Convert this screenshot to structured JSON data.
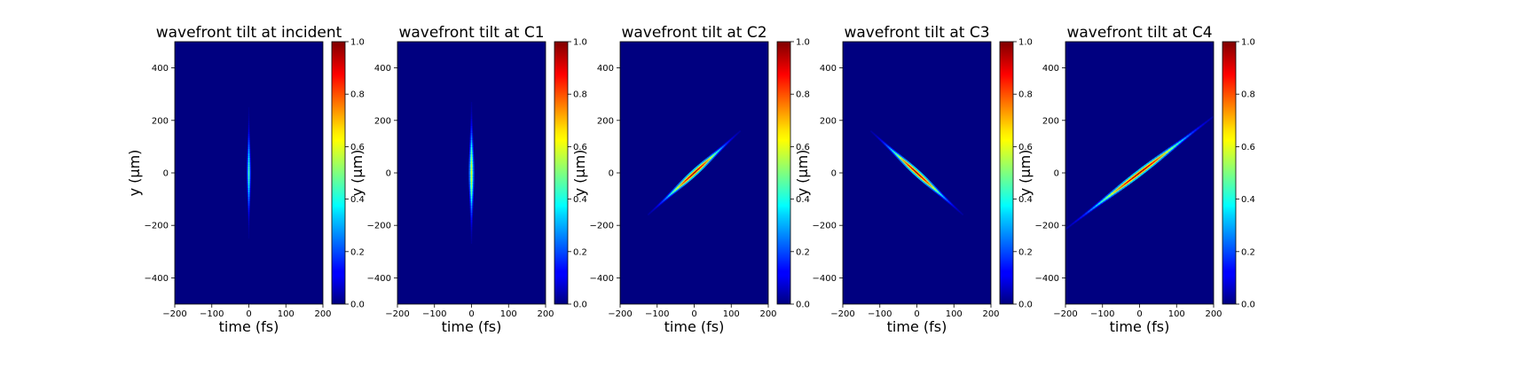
{
  "chart_data": [
    {
      "type": "heatmap",
      "title": "wavefront tilt at incident",
      "xlabel": "time (fs)",
      "ylabel": "y (μm)",
      "xlim": [
        -200,
        200
      ],
      "ylim": [
        -500,
        500
      ],
      "xticks": [
        -200,
        -100,
        0,
        100,
        200
      ],
      "yticks": [
        -400,
        -200,
        0,
        200,
        400
      ],
      "colorbar": {
        "cmap": "jet",
        "range": [
          0.0,
          1.0
        ],
        "ticks": [
          "0.0",
          "0.2",
          "0.4",
          "0.6",
          "0.8",
          "1.0"
        ]
      },
      "feature": {
        "t0": 0,
        "slope_fs_per_um": 0,
        "y_half_extent": 250,
        "t_width_fs": 3,
        "peak": 0.45
      }
    },
    {
      "type": "heatmap",
      "title": "wavefront tilt at C1",
      "xlabel": "time (fs)",
      "ylabel": "y (μm)",
      "xlim": [
        -200,
        200
      ],
      "ylim": [
        -500,
        500
      ],
      "xticks": [
        -200,
        -100,
        0,
        100,
        200
      ],
      "yticks": [
        -400,
        -200,
        0,
        200,
        400
      ],
      "colorbar": {
        "cmap": "jet",
        "range": [
          0.0,
          1.0
        ],
        "ticks": [
          "0.0",
          "0.2",
          "0.4",
          "0.6",
          "0.8",
          "1.0"
        ]
      },
      "feature": {
        "t0": 0,
        "slope_fs_per_um": 0,
        "y_half_extent": 270,
        "t_width_fs": 4,
        "peak": 0.6
      }
    },
    {
      "type": "heatmap",
      "title": "wavefront tilt at C2",
      "xlabel": "time (fs)",
      "ylabel": "y (μm)",
      "xlim": [
        -200,
        200
      ],
      "ylim": [
        -500,
        500
      ],
      "xticks": [
        -200,
        -100,
        0,
        100,
        200
      ],
      "yticks": [
        -400,
        -200,
        0,
        200,
        400
      ],
      "colorbar": {
        "cmap": "jet",
        "range": [
          0.0,
          1.0
        ],
        "ticks": [
          "0.0",
          "0.2",
          "0.4",
          "0.6",
          "0.8",
          "1.0"
        ]
      },
      "feature": {
        "t0": 0,
        "slope_fs_per_um": 0.78,
        "y_half_extent": 160,
        "t_width_fs": 5,
        "peak": 0.95
      }
    },
    {
      "type": "heatmap",
      "title": "wavefront tilt at C3",
      "xlabel": "time (fs)",
      "ylabel": "y (μm)",
      "xlim": [
        -200,
        200
      ],
      "ylim": [
        -500,
        500
      ],
      "xticks": [
        -200,
        -100,
        0,
        100,
        200
      ],
      "yticks": [
        -400,
        -200,
        0,
        200,
        400
      ],
      "colorbar": {
        "cmap": "jet",
        "range": [
          0.0,
          1.0
        ],
        "ticks": [
          "0.0",
          "0.2",
          "0.4",
          "0.6",
          "0.8",
          "1.0"
        ]
      },
      "feature": {
        "t0": 0,
        "slope_fs_per_um": -0.78,
        "y_half_extent": 160,
        "t_width_fs": 5,
        "peak": 0.95
      }
    },
    {
      "type": "heatmap",
      "title": "wavefront tilt at C4",
      "xlabel": "time (fs)",
      "ylabel": "y (μm)",
      "xlim": [
        -200,
        200
      ],
      "ylim": [
        -500,
        500
      ],
      "xticks": [
        -200,
        -100,
        0,
        100,
        200
      ],
      "yticks": [
        -400,
        -200,
        0,
        200,
        400
      ],
      "colorbar": {
        "cmap": "jet",
        "range": [
          0.0,
          1.0
        ],
        "ticks": [
          "0.0",
          "0.2",
          "0.4",
          "0.6",
          "0.8",
          "1.0"
        ]
      },
      "feature": {
        "t0": 0,
        "slope_fs_per_um": 0.93,
        "y_half_extent": 225,
        "t_width_fs": 5,
        "peak": 0.95
      }
    }
  ]
}
